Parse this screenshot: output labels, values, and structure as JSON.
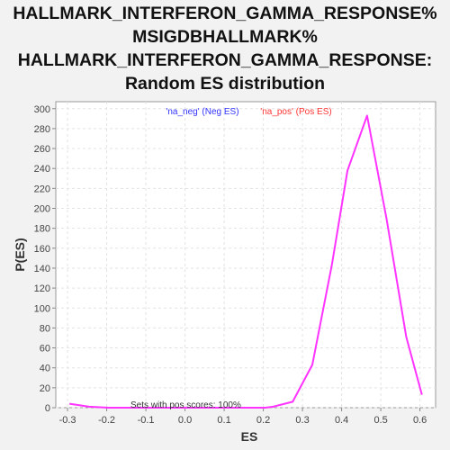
{
  "chart_data": {
    "type": "line",
    "title_lines": [
      "HALLMARK_INTERFERON_GAMMA_RESPONSE%",
      "MSIGDBHALLMARK%",
      "HALLMARK_INTERFERON_GAMMA_RESPONSE:",
      "Random ES distribution"
    ],
    "xlabel": "ES",
    "ylabel": "P(ES)",
    "xlim": [
      -0.33,
      0.64
    ],
    "ylim": [
      0,
      307
    ],
    "x_ticks": [
      -0.3,
      -0.2,
      -0.1,
      0.0,
      0.1,
      0.2,
      0.3,
      0.4,
      0.5,
      0.6
    ],
    "x_tick_labels": [
      "-0.3",
      "-0.2",
      "-0.1",
      "0.0",
      "0.1",
      "0.2",
      "0.3",
      "0.4",
      "0.5",
      "0.6"
    ],
    "y_ticks": [
      0,
      20,
      40,
      60,
      80,
      100,
      120,
      140,
      160,
      180,
      200,
      220,
      240,
      260,
      280,
      300
    ],
    "grid": true,
    "legend": {
      "placement": "top-center",
      "entries": [
        {
          "label": "'na_neg' (Neg ES)",
          "color": "#3333ff"
        },
        {
          "label": "'na_pos' (Pos ES)",
          "color": "#ff3333"
        }
      ]
    },
    "annotation": "Sets with pos scores: 100%",
    "series": [
      {
        "color": "#ff33ff",
        "x": [
          -0.295,
          -0.245,
          -0.195,
          -0.145,
          -0.095,
          -0.045,
          0.005,
          0.055,
          0.105,
          0.155,
          0.205,
          0.225,
          0.275,
          0.325,
          0.375,
          0.415,
          0.465,
          0.515,
          0.565,
          0.605
        ],
        "y": [
          4,
          1,
          0,
          0,
          0,
          0,
          0,
          0,
          0,
          0,
          0,
          1,
          6,
          43,
          143,
          238,
          293,
          189,
          71,
          13
        ]
      }
    ]
  }
}
